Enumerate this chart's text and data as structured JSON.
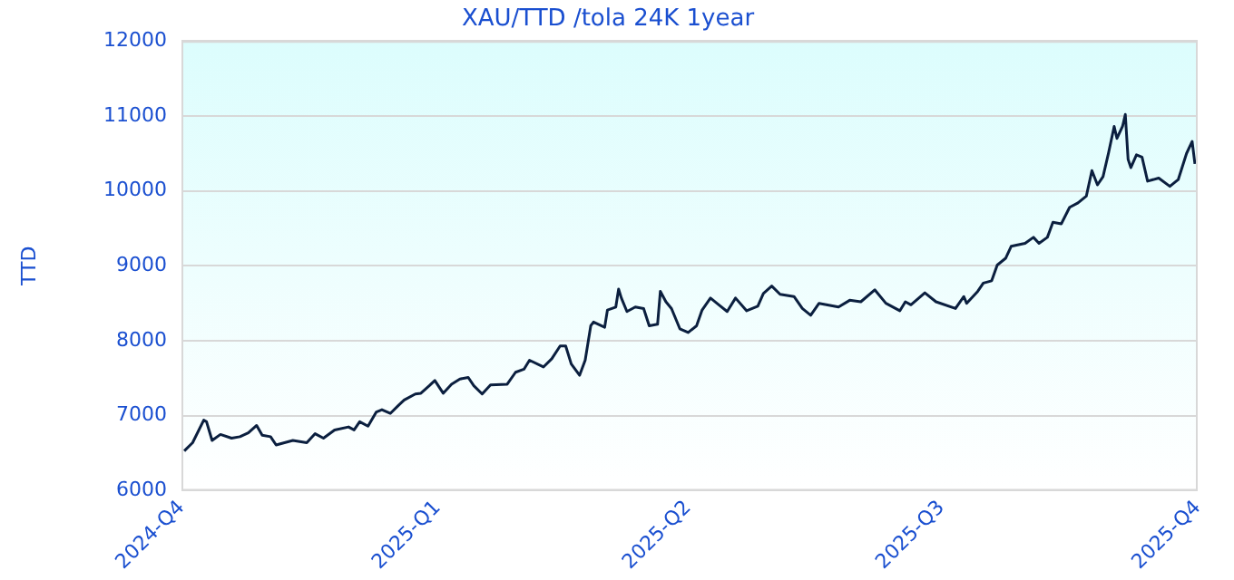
{
  "chart_data": {
    "type": "line",
    "title": "XAU/TTD /tola 24K 1year",
    "ylabel": "TTD",
    "grid": "y",
    "legend": false,
    "marker": "none",
    "line_style": "solid",
    "xlim": [
      "2024-10-01",
      "2025-10-01"
    ],
    "xticks": [
      {
        "value": "2024-10-01",
        "label": "2024-Q4"
      },
      {
        "value": "2025-01-01",
        "label": "2025-Q1"
      },
      {
        "value": "2025-04-01",
        "label": "2025-Q2"
      },
      {
        "value": "2025-07-01",
        "label": "2025-Q3"
      },
      {
        "value": "2025-10-01",
        "label": "2025-Q4"
      }
    ],
    "ylim": [
      6000,
      12000
    ],
    "yticks": [
      6000,
      7000,
      8000,
      9000,
      10000,
      11000,
      12000
    ],
    "x": [
      "2024-10-02",
      "2024-10-05",
      "2024-10-09",
      "2024-10-10",
      "2024-10-12",
      "2024-10-15",
      "2024-10-19",
      "2024-10-22",
      "2024-10-25",
      "2024-10-28",
      "2024-10-30",
      "2024-11-02",
      "2024-11-04",
      "2024-11-10",
      "2024-11-15",
      "2024-11-18",
      "2024-11-21",
      "2024-11-25",
      "2024-11-30",
      "2024-12-02",
      "2024-12-04",
      "2024-12-07",
      "2024-12-10",
      "2024-12-12",
      "2024-12-15",
      "2024-12-18",
      "2024-12-20",
      "2024-12-24",
      "2024-12-26",
      "2024-12-29",
      "2024-12-31",
      "2025-01-03",
      "2025-01-06",
      "2025-01-09",
      "2025-01-12",
      "2025-01-14",
      "2025-01-17",
      "2025-01-20",
      "2025-01-26",
      "2025-01-29",
      "2025-02-01",
      "2025-02-03",
      "2025-02-08",
      "2025-02-11",
      "2025-02-14",
      "2025-02-16",
      "2025-02-18",
      "2025-02-21",
      "2025-02-23",
      "2025-02-25",
      "2025-02-26",
      "2025-03-02",
      "2025-03-03",
      "2025-03-06",
      "2025-03-07",
      "2025-03-08",
      "2025-03-10",
      "2025-03-13",
      "2025-03-16",
      "2025-03-18",
      "2025-03-21",
      "2025-03-22",
      "2025-03-24",
      "2025-03-26",
      "2025-03-29",
      "2025-04-01",
      "2025-04-04",
      "2025-04-06",
      "2025-04-09",
      "2025-04-12",
      "2025-04-15",
      "2025-04-18",
      "2025-04-22",
      "2025-04-26",
      "2025-04-28",
      "2025-05-01",
      "2025-05-04",
      "2025-05-09",
      "2025-05-12",
      "2025-05-15",
      "2025-05-18",
      "2025-05-25",
      "2025-05-29",
      "2025-06-02",
      "2025-06-07",
      "2025-06-11",
      "2025-06-16",
      "2025-06-18",
      "2025-06-20",
      "2025-06-25",
      "2025-06-29",
      "2025-07-06",
      "2025-07-09",
      "2025-07-10",
      "2025-07-14",
      "2025-07-16",
      "2025-07-19",
      "2025-07-21",
      "2025-07-24",
      "2025-07-26",
      "2025-07-31",
      "2025-08-03",
      "2025-08-05",
      "2025-08-08",
      "2025-08-10",
      "2025-08-13",
      "2025-08-16",
      "2025-08-19",
      "2025-08-22",
      "2025-08-24",
      "2025-08-26",
      "2025-08-28",
      "2025-08-30",
      "2025-09-01",
      "2025-09-02",
      "2025-09-04",
      "2025-09-05",
      "2025-09-06",
      "2025-09-07",
      "2025-09-09",
      "2025-09-11",
      "2025-09-13",
      "2025-09-17",
      "2025-09-21",
      "2025-09-24",
      "2025-09-27",
      "2025-09-29",
      "2025-09-30"
    ],
    "series": [
      {
        "color": "#0b1f3f",
        "values": [
          6530,
          6640,
          6940,
          6920,
          6670,
          6750,
          6700,
          6720,
          6770,
          6870,
          6740,
          6720,
          6610,
          6670,
          6640,
          6760,
          6700,
          6810,
          6850,
          6810,
          6920,
          6860,
          7050,
          7080,
          7030,
          7140,
          7210,
          7290,
          7300,
          7400,
          7470,
          7300,
          7420,
          7490,
          7510,
          7400,
          7290,
          7410,
          7420,
          7580,
          7620,
          7740,
          7650,
          7760,
          7930,
          7930,
          7690,
          7540,
          7740,
          8200,
          8250,
          8180,
          8410,
          8450,
          8690,
          8570,
          8390,
          8450,
          8430,
          8200,
          8220,
          8660,
          8520,
          8430,
          8160,
          8110,
          8200,
          8410,
          8570,
          8480,
          8390,
          8570,
          8400,
          8460,
          8630,
          8730,
          8620,
          8590,
          8430,
          8340,
          8500,
          8450,
          8540,
          8520,
          8680,
          8500,
          8400,
          8520,
          8480,
          8640,
          8520,
          8430,
          8590,
          8500,
          8660,
          8770,
          8800,
          9010,
          9100,
          9260,
          9300,
          9380,
          9300,
          9380,
          9580,
          9560,
          9780,
          9840,
          9930,
          10270,
          10080,
          10190,
          10510,
          10860,
          10700,
          10860,
          11020,
          10420,
          10310,
          10480,
          10450,
          10130,
          10170,
          10060,
          10150,
          10500,
          10660,
          10360
        ]
      }
    ]
  }
}
